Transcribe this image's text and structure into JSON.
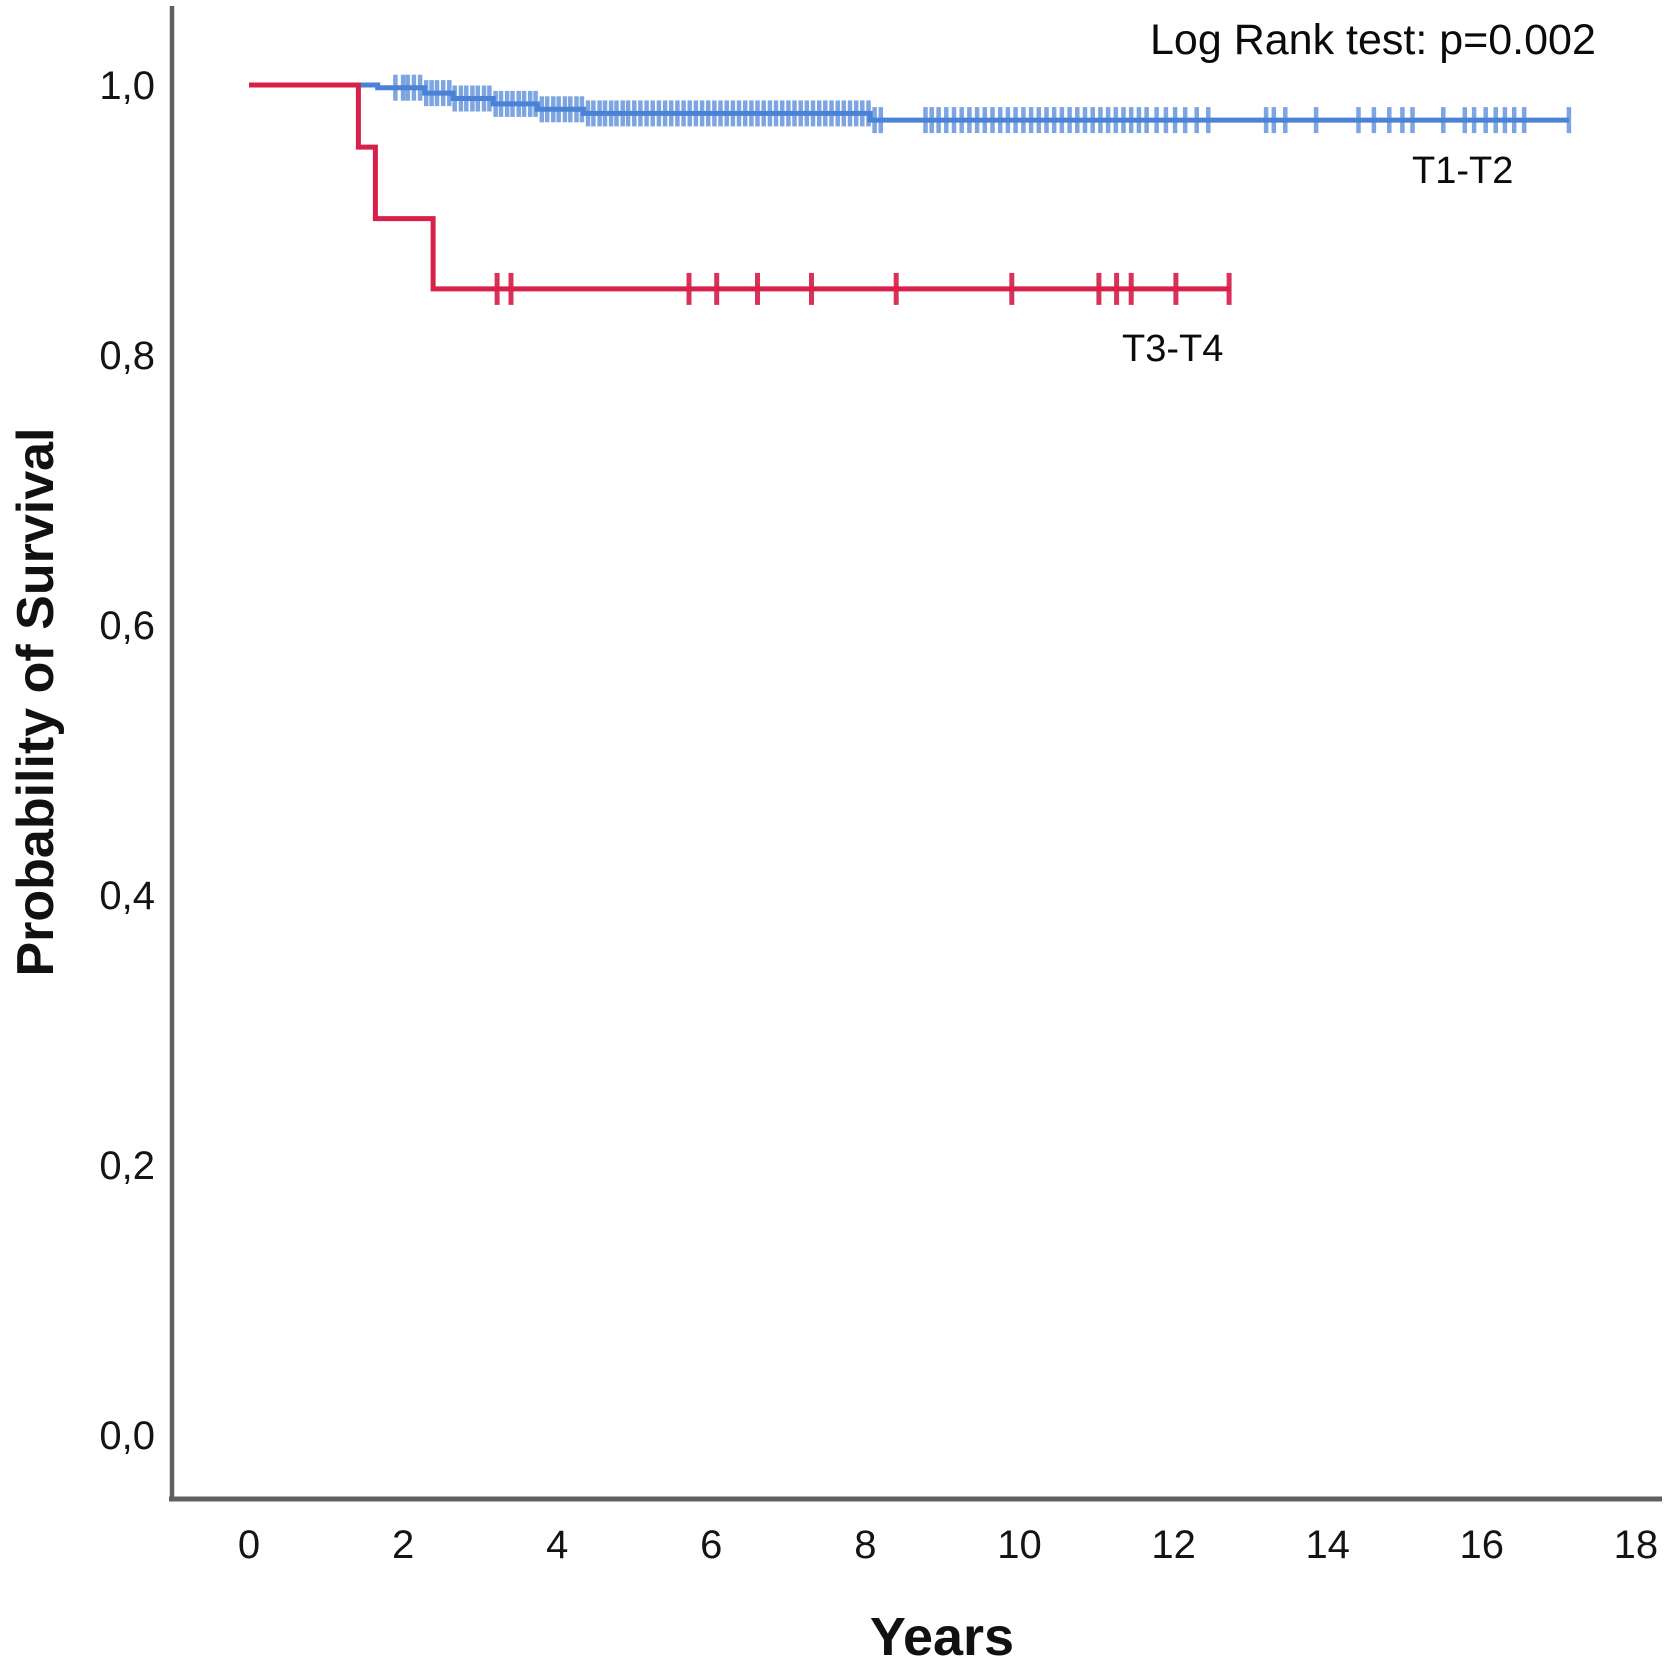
{
  "chart_data": {
    "type": "line",
    "subtype": "kaplan-meier-step-function",
    "title": "",
    "annotation": "Log Rank test: p=0.002",
    "xlabel": "Years",
    "ylabel": "Probability of Survival",
    "xlim": [
      0,
      18
    ],
    "ylim": [
      0.0,
      1.0
    ],
    "grid": "off",
    "legend_position": "inline-labels",
    "x_ticks": [
      {
        "value": 0,
        "label": "0"
      },
      {
        "value": 2,
        "label": "2"
      },
      {
        "value": 4,
        "label": "4"
      },
      {
        "value": 6,
        "label": "6"
      },
      {
        "value": 8,
        "label": "8"
      },
      {
        "value": 10,
        "label": "10"
      },
      {
        "value": 12,
        "label": "12"
      },
      {
        "value": 14,
        "label": "14"
      },
      {
        "value": 16,
        "label": "16"
      },
      {
        "value": 18,
        "label": "18"
      }
    ],
    "y_ticks": [
      {
        "value": 1.0,
        "label": "1,0"
      },
      {
        "value": 0.8,
        "label": "0,8"
      },
      {
        "value": 0.6,
        "label": "0,6"
      },
      {
        "value": 0.4,
        "label": "0,4"
      },
      {
        "value": 0.2,
        "label": "0,2"
      },
      {
        "value": 0.0,
        "label": "0,0"
      }
    ],
    "series": [
      {
        "name": "T1-T2",
        "color": "#4a82d6",
        "steps": [
          [
            0,
            1.0
          ],
          [
            1.67,
            1.0
          ],
          [
            1.67,
            0.998
          ],
          [
            2.28,
            0.998
          ],
          [
            2.28,
            0.994
          ],
          [
            2.65,
            0.994
          ],
          [
            2.65,
            0.99
          ],
          [
            3.17,
            0.99
          ],
          [
            3.17,
            0.986
          ],
          [
            3.74,
            0.986
          ],
          [
            3.74,
            0.982
          ],
          [
            4.34,
            0.982
          ],
          [
            4.34,
            0.979
          ],
          [
            8.06,
            0.979
          ],
          [
            8.06,
            0.974
          ],
          [
            17.13,
            0.974
          ]
        ],
        "censor_times": [
          1.9,
          2.0,
          2.06,
          2.14,
          2.22,
          2.3,
          2.37,
          2.44,
          2.52,
          2.6,
          2.67,
          2.75,
          2.82,
          2.9,
          2.97,
          3.05,
          3.12,
          3.2,
          3.27,
          3.35,
          3.42,
          3.5,
          3.57,
          3.65,
          3.72,
          3.8,
          3.87,
          3.95,
          4.02,
          4.1,
          4.17,
          4.25,
          4.32,
          4.4,
          4.47,
          4.55,
          4.62,
          4.7,
          4.77,
          4.85,
          4.92,
          5.0,
          5.08,
          5.16,
          5.24,
          5.32,
          5.4,
          5.48,
          5.56,
          5.64,
          5.72,
          5.8,
          5.88,
          5.96,
          6.04,
          6.12,
          6.2,
          6.28,
          6.36,
          6.44,
          6.52,
          6.6,
          6.68,
          6.76,
          6.84,
          6.92,
          7.0,
          7.08,
          7.16,
          7.24,
          7.32,
          7.4,
          7.48,
          7.56,
          7.64,
          7.72,
          7.8,
          7.88,
          7.96,
          8.04,
          8.12,
          8.2,
          8.78,
          8.86,
          8.95,
          9.05,
          9.15,
          9.25,
          9.35,
          9.45,
          9.55,
          9.65,
          9.75,
          9.85,
          9.95,
          10.05,
          10.15,
          10.25,
          10.35,
          10.45,
          10.55,
          10.65,
          10.75,
          10.85,
          10.95,
          11.05,
          11.15,
          11.25,
          11.35,
          11.45,
          11.55,
          11.65,
          11.78,
          11.9,
          12.02,
          12.15,
          12.3,
          12.45,
          13.2,
          13.3,
          13.45,
          13.85,
          14.4,
          14.6,
          14.8,
          14.97,
          15.1,
          15.5,
          15.78,
          15.9,
          16.05,
          16.18,
          16.3,
          16.42,
          16.55,
          17.13
        ]
      },
      {
        "name": "T3-T4",
        "color": "#d7204a",
        "steps": [
          [
            0,
            1.0
          ],
          [
            1.42,
            1.0
          ],
          [
            1.42,
            0.954
          ],
          [
            1.64,
            0.954
          ],
          [
            1.64,
            0.901
          ],
          [
            2.39,
            0.901
          ],
          [
            2.39,
            0.849
          ],
          [
            12.74,
            0.849
          ]
        ],
        "censor_times": [
          3.22,
          3.4,
          5.71,
          6.07,
          6.6,
          7.3,
          8.4,
          9.9,
          11.03,
          11.26,
          11.45,
          12.03,
          12.72
        ]
      }
    ]
  },
  "axis_style": {
    "line_color": "#606060"
  }
}
